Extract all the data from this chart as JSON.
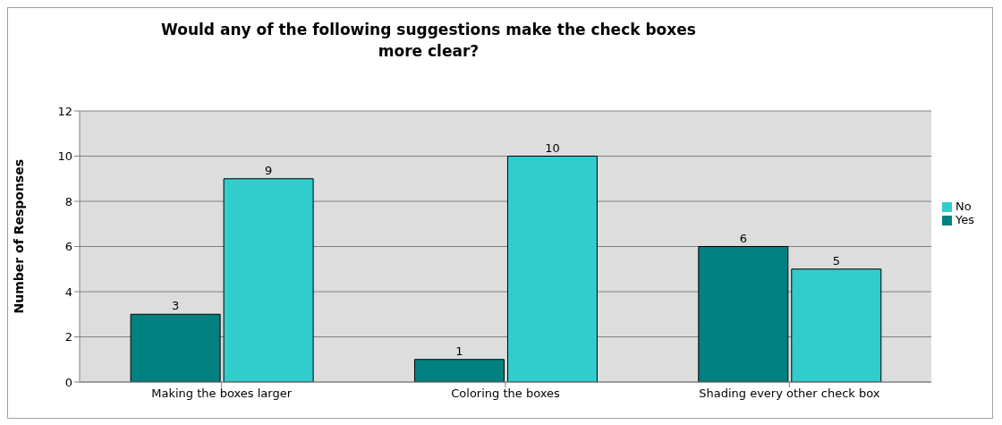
{
  "chart_data": {
    "type": "bar",
    "title": "Would any of the following suggestions make the check boxes more clear?",
    "ylabel": "Number of Responses",
    "categories": [
      "Making the boxes larger",
      "Coloring the boxes",
      "Shading every other check box"
    ],
    "series": [
      {
        "name": "Yes",
        "color": "#008080",
        "values": [
          3,
          1,
          6
        ]
      },
      {
        "name": "No",
        "color": "#33cccc",
        "values": [
          9,
          10,
          5
        ]
      }
    ],
    "ylim": [
      0,
      12
    ],
    "yticks": [
      0,
      2,
      4,
      6,
      8,
      10,
      12
    ],
    "grid": "y",
    "legend": "right",
    "data_labels": true
  }
}
